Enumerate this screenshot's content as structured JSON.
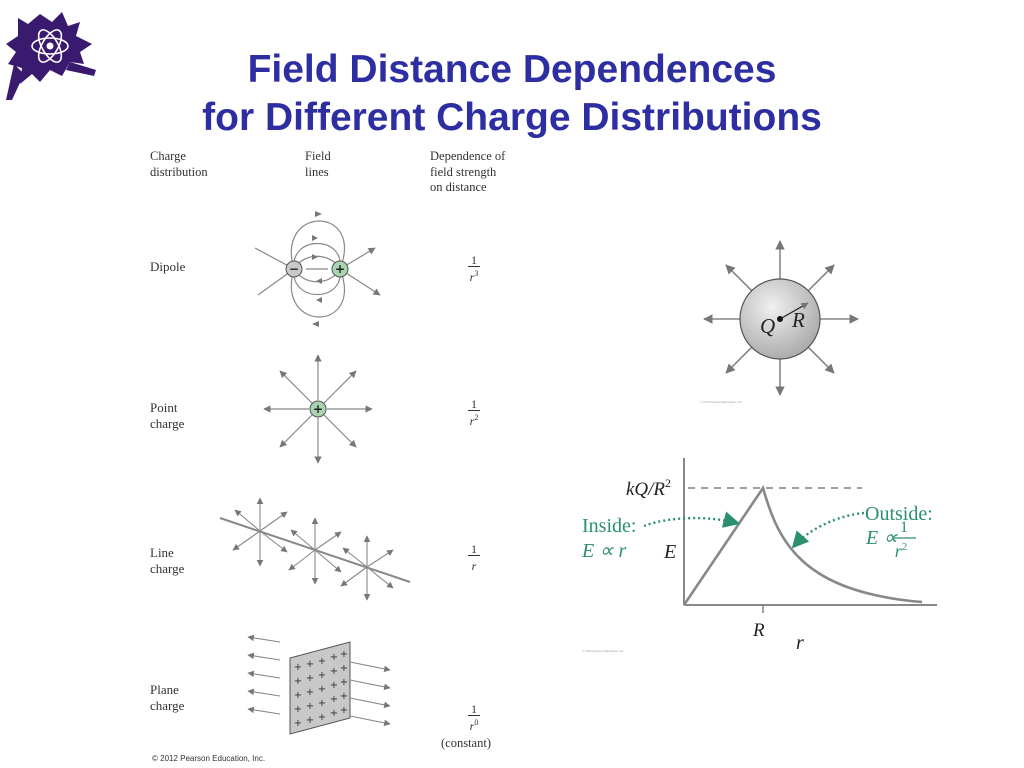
{
  "title_line1": "Field Distance Dependences",
  "title_line2": "for Different Charge Distributions",
  "table": {
    "col_charge": [
      "Charge",
      "distribution"
    ],
    "col_field": [
      "Field",
      "lines"
    ],
    "col_dependence": [
      "Dependence of",
      "field strength",
      "on distance"
    ],
    "rows": [
      {
        "label": [
          "Dipole"
        ],
        "num": "1",
        "den": "r",
        "exp": "3"
      },
      {
        "label": [
          "Point",
          "charge"
        ],
        "num": "1",
        "den": "r",
        "exp": "2"
      },
      {
        "label": [
          "Line",
          "charge"
        ],
        "num": "1",
        "den": "r",
        "exp": ""
      },
      {
        "label": [
          "Plane",
          "charge"
        ],
        "num": "1",
        "den": "r",
        "exp": "0",
        "note": "(constant)"
      }
    ],
    "copyright": "© 2012 Pearson Education, Inc.",
    "minus_sign": "−",
    "plus_sign": "+"
  },
  "sphere": {
    "label_q": "Q",
    "label_r": "R",
    "credit": "© 2012 Pearson Education, Inc."
  },
  "graph": {
    "y_max_label_prefix": "kQ/R",
    "y_max_label_exp": "2",
    "y_axis_label": "E",
    "x_axis_label": "r",
    "x_tick_label": "R",
    "inside_label": "Inside:",
    "inside_formula": "E ∝ r",
    "outside_label": "Outside:",
    "outside_formula_prefix": "E ∝",
    "outside_num": "1",
    "outside_den": "r",
    "outside_den_exp": "2",
    "credit": "© 2012 Pearson Education, Inc.",
    "colors": {
      "curve": "#888888",
      "annotation": "#2a9070"
    }
  }
}
